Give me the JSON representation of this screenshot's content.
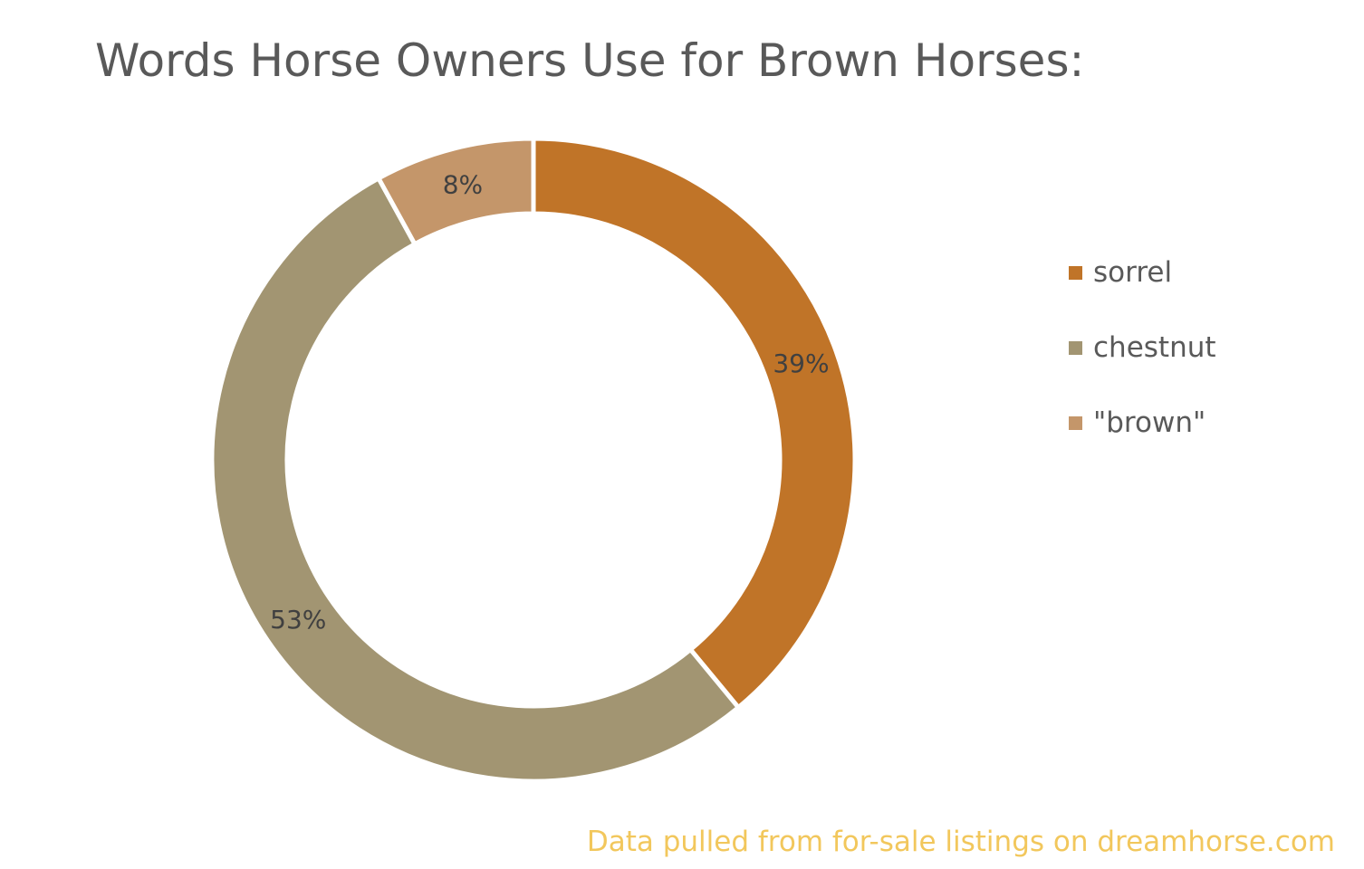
{
  "chart_data": {
    "type": "pie",
    "title": "Words Horse Owners Use for Brown Horses:",
    "categories": [
      "sorrel",
      "chestnut",
      "\"brown\""
    ],
    "values": [
      39,
      53,
      8
    ],
    "labels": [
      "39%",
      "53%",
      "8%"
    ],
    "colors": [
      "#c07428",
      "#a29572",
      "#c4966a"
    ],
    "legend_position": "right",
    "donut": true
  },
  "footnote": "Data pulled from for-sale listings on dreamhorse.com"
}
